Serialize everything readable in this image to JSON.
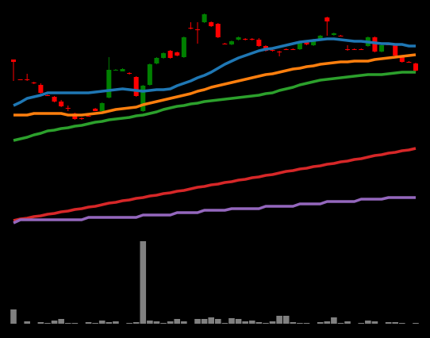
{
  "chart_data": {
    "type": "candlestick",
    "ylim": [
      0,
      300
    ],
    "up_color": "#008000",
    "down_color": "#ff0000",
    "open": [
      225,
      200,
      200,
      196,
      193,
      180,
      178,
      172,
      164,
      157,
      151,
      154,
      163,
      160,
      177,
      211,
      210,
      208,
      203,
      160,
      193,
      220,
      227,
      236,
      234,
      228,
      265,
      263,
      272,
      272,
      270,
      245,
      244,
      250,
      251,
      251,
      250,
      242,
      237,
      235,
      238,
      238,
      238,
      248,
      243,
      250,
      278,
      256,
      255,
      238,
      238,
      238,
      242,
      253,
      235,
      244,
      243,
      228,
      222,
      220
    ],
    "high": [
      225,
      200,
      207,
      197,
      195,
      181,
      179,
      174,
      167,
      158,
      152,
      155,
      164,
      171,
      228,
      213,
      214,
      209,
      204,
      193,
      220,
      228,
      234,
      237,
      235,
      254,
      272,
      272,
      283,
      273,
      271,
      246,
      249,
      254,
      252,
      252,
      252,
      243,
      238,
      236,
      239,
      239,
      247,
      249,
      251,
      256,
      279,
      259,
      256,
      243,
      239,
      239,
      254,
      254,
      244,
      245,
      244,
      229,
      223,
      221
    ],
    "low": [
      198,
      199,
      198,
      194,
      182,
      179,
      171,
      165,
      160,
      149,
      149,
      153,
      160,
      160,
      176,
      211,
      210,
      206,
      178,
      159,
      192,
      219,
      226,
      226,
      229,
      227,
      263,
      245,
      271,
      266,
      252,
      244,
      243,
      249,
      249,
      249,
      241,
      235,
      235,
      229,
      237,
      237,
      237,
      243,
      242,
      249,
      255,
      255,
      254,
      236,
      237,
      237,
      241,
      234,
      234,
      243,
      229,
      221,
      221,
      210
    ],
    "close": [
      222,
      199,
      199,
      195,
      183,
      179,
      172,
      166,
      163,
      150,
      150,
      153,
      160,
      170,
      212,
      212,
      213,
      207,
      179,
      192,
      219,
      227,
      233,
      227,
      230,
      253,
      264,
      262,
      282,
      267,
      253,
      244,
      248,
      253,
      250,
      250,
      242,
      236,
      236,
      234,
      237,
      237,
      246,
      244,
      250,
      255,
      273,
      258,
      254,
      237,
      237,
      237,
      253,
      235,
      243,
      243,
      230,
      222,
      221,
      211
    ],
    "series": [
      {
        "color": "#1f77b4",
        "values": [
          167,
          171,
          176,
          178,
          180,
          183,
          183,
          183,
          183,
          183,
          183,
          183,
          184,
          185,
          186,
          187,
          188,
          187,
          186,
          185,
          186,
          187,
          187,
          188,
          192,
          195,
          198,
          202,
          205,
          209,
          214,
          219,
          223,
          227,
          230,
          233,
          236,
          238,
          239,
          241,
          243,
          245,
          247,
          248,
          249,
          250,
          251,
          251,
          250,
          249,
          248,
          248,
          247,
          246,
          245,
          245,
          244,
          244,
          242,
          242
        ]
      },
      {
        "color": "#ff7f0e",
        "values": [
          155,
          155,
          155,
          157,
          157,
          157,
          157,
          157,
          155,
          155,
          155,
          156,
          157,
          158,
          160,
          162,
          163,
          164,
          165,
          168,
          170,
          172,
          174,
          176,
          178,
          180,
          182,
          185,
          187,
          190,
          192,
          194,
          196,
          198,
          200,
          202,
          204,
          206,
          207,
          209,
          211,
          213,
          214,
          216,
          217,
          219,
          220,
          221,
          222,
          222,
          223,
          223,
          223,
          225,
          226,
          227,
          228,
          229,
          230,
          231
        ]
      },
      {
        "color": "#2ca02c",
        "values": [
          123,
          125,
          127,
          130,
          132,
          135,
          136,
          138,
          139,
          141,
          142,
          144,
          146,
          147,
          149,
          150,
          151,
          152,
          154,
          155,
          157,
          159,
          162,
          164,
          166,
          167,
          169,
          170,
          172,
          173,
          174,
          175,
          176,
          177,
          178,
          179,
          180,
          182,
          183,
          186,
          188,
          190,
          193,
          195,
          197,
          199,
          200,
          201,
          202,
          203,
          204,
          205,
          206,
          206,
          206,
          207,
          208,
          209,
          209,
          209
        ]
      },
      {
        "color": "#d62728",
        "values": [
          22,
          24,
          25,
          27,
          28,
          30,
          31,
          33,
          34,
          36,
          37,
          39,
          40,
          42,
          44,
          45,
          47,
          48,
          50,
          51,
          53,
          54,
          56,
          57,
          59,
          60,
          62,
          64,
          65,
          67,
          68,
          70,
          71,
          73,
          74,
          76,
          77,
          79,
          80,
          82,
          84,
          85,
          87,
          88,
          90,
          91,
          93,
          94,
          96,
          97,
          99,
          100,
          102,
          104,
          105,
          107,
          108,
          110,
          111,
          113
        ]
      },
      {
        "color": "#9467bd",
        "values": [
          19,
          23,
          23,
          23,
          23,
          23,
          23,
          23,
          23,
          23,
          23,
          26,
          26,
          26,
          26,
          26,
          26,
          26,
          26,
          29,
          29,
          29,
          29,
          29,
          32,
          32,
          32,
          32,
          35,
          35,
          35,
          35,
          37,
          37,
          37,
          37,
          37,
          40,
          40,
          40,
          40,
          40,
          43,
          43,
          43,
          43,
          46,
          46,
          46,
          46,
          46,
          49,
          49,
          49,
          49,
          51,
          51,
          51,
          51,
          51
        ]
      }
    ],
    "volume": {
      "color": "#808080",
      "ylim": [
        0,
        104
      ],
      "values": [
        18,
        0,
        3,
        0,
        2,
        1,
        4,
        6,
        1,
        1,
        0,
        2,
        1,
        4,
        2,
        3,
        0,
        1,
        2,
        104,
        4,
        3,
        1,
        3,
        6,
        3,
        0,
        6,
        6,
        8,
        6,
        1,
        7,
        6,
        3,
        4,
        2,
        1,
        3,
        10,
        10,
        2,
        1,
        1,
        0,
        2,
        3,
        8,
        1,
        3,
        0,
        1,
        4,
        3,
        0,
        2,
        2,
        1,
        0,
        1
      ]
    }
  }
}
